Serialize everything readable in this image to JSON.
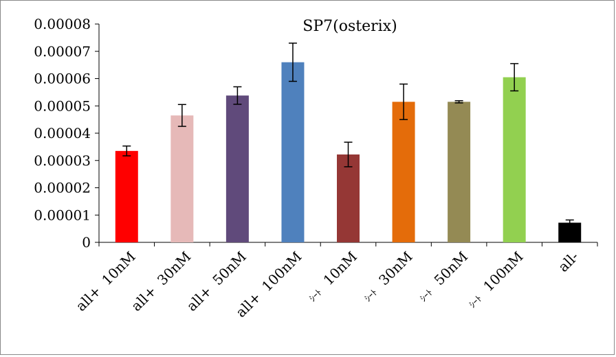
{
  "chart_data": {
    "type": "bar",
    "title": "SP7(osterix)",
    "xlabel": "",
    "ylabel": "",
    "ylim": [
      0,
      8e-05
    ],
    "yticks": [
      "0.00008",
      "0.00007",
      "0.00006",
      "0.00005",
      "0.00004",
      "0.00003",
      "0.00002",
      "0.00001",
      "0"
    ],
    "ytick_values": [
      8e-05,
      7e-05,
      6e-05,
      5e-05,
      4e-05,
      3e-05,
      2e-05,
      1e-05,
      0
    ],
    "categories": [
      {
        "prefix": "all+",
        "label": "10nM"
      },
      {
        "prefix": "all+",
        "label": "30nM"
      },
      {
        "prefix": "all+",
        "label": "50nM"
      },
      {
        "prefix": "all+",
        "label": "100nM"
      },
      {
        "prefix": "ｼｰﾄ",
        "label": "10nM"
      },
      {
        "prefix": "ｼｰﾄ",
        "label": "30nM"
      },
      {
        "prefix": "ｼｰﾄ",
        "label": "50nM"
      },
      {
        "prefix": "ｼｰﾄ",
        "label": "100nM"
      },
      {
        "prefix": "",
        "label": "all-"
      }
    ],
    "values": [
      3.35e-05,
      4.65e-05,
      5.38e-05,
      6.6e-05,
      3.22e-05,
      5.15e-05,
      5.15e-05,
      6.05e-05,
      7.2e-06
    ],
    "errors": [
      1.8e-06,
      4e-06,
      3.2e-06,
      7e-06,
      4.5e-06,
      6.5e-06,
      4e-07,
      5e-06,
      1e-06
    ],
    "colors": [
      "#ff0000",
      "#e6b9b8",
      "#604a7b",
      "#4f81bd",
      "#953735",
      "#e46c0a",
      "#948a54",
      "#92d050",
      "#000000"
    ],
    "grid": false,
    "legend": "none"
  }
}
